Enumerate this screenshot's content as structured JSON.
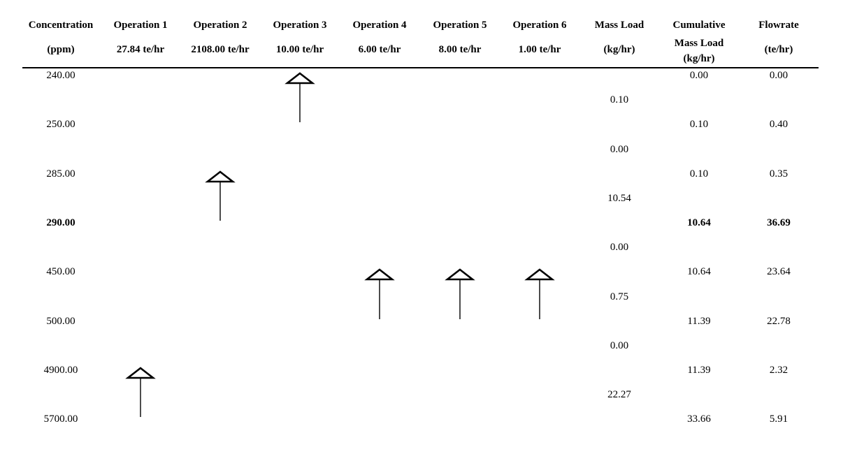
{
  "diagram": {
    "kind": "concentration-interval-diagram",
    "colors": {
      "text": "#000000",
      "background": "#ffffff",
      "line": "#000000"
    }
  },
  "columns": [
    {
      "id": "concentration",
      "title": "Concentration",
      "subtitle": "(ppm)"
    },
    {
      "id": "operation-1",
      "title": "Operation 1",
      "subtitle": "27.84 te/hr"
    },
    {
      "id": "operation-2",
      "title": "Operation 2",
      "subtitle": "2108.00 te/hr"
    },
    {
      "id": "operation-3",
      "title": "Operation 3",
      "subtitle": "10.00 te/hr"
    },
    {
      "id": "operation-4",
      "title": "Operation 4",
      "subtitle": "6.00 te/hr"
    },
    {
      "id": "operation-5",
      "title": "Operation 5",
      "subtitle": "8.00 te/hr"
    },
    {
      "id": "operation-6",
      "title": "Operation 6",
      "subtitle": "1.00 te/hr"
    },
    {
      "id": "mass-load",
      "title": "Mass Load",
      "subtitle": "(kg/hr)"
    },
    {
      "id": "cumulative-mass-load",
      "title": "Cumulative",
      "subtitle": "Mass Load\n(kg/hr)",
      "multiline": true
    },
    {
      "id": "flowrate",
      "title": "Flowrate",
      "subtitle": "(te/hr)"
    }
  ],
  "rows": [
    {
      "concentration": "240.00",
      "cumulative_mass_load": "0.00",
      "flowrate": "0.00",
      "bold": false
    },
    {
      "concentration": "250.00",
      "cumulative_mass_load": "0.10",
      "flowrate": "0.40",
      "bold": false
    },
    {
      "concentration": "285.00",
      "cumulative_mass_load": "0.10",
      "flowrate": "0.35",
      "bold": false
    },
    {
      "concentration": "290.00",
      "cumulative_mass_load": "10.64",
      "flowrate": "36.69",
      "bold": true
    },
    {
      "concentration": "450.00",
      "cumulative_mass_load": "10.64",
      "flowrate": "23.64",
      "bold": false
    },
    {
      "concentration": "500.00",
      "cumulative_mass_load": "11.39",
      "flowrate": "22.78",
      "bold": false
    },
    {
      "concentration": "4900.00",
      "cumulative_mass_load": "11.39",
      "flowrate": "2.32",
      "bold": false
    },
    {
      "concentration": "5700.00",
      "cumulative_mass_load": "33.66",
      "flowrate": "5.91",
      "bold": false
    }
  ],
  "interval_mass_loads": [
    {
      "between": [
        "240.00",
        "250.00"
      ],
      "mass_load": "0.10"
    },
    {
      "between": [
        "250.00",
        "285.00"
      ],
      "mass_load": "0.00"
    },
    {
      "between": [
        "285.00",
        "290.00"
      ],
      "mass_load": "10.54"
    },
    {
      "between": [
        "290.00",
        "450.00"
      ],
      "mass_load": "0.00"
    },
    {
      "between": [
        "450.00",
        "500.00"
      ],
      "mass_load": "0.75"
    },
    {
      "between": [
        "500.00",
        "4900.00"
      ],
      "mass_load": "0.00"
    },
    {
      "between": [
        "4900.00",
        "5700.00"
      ],
      "mass_load": "22.27"
    }
  ],
  "arrows": [
    {
      "operation": "Operation 1",
      "column": 1,
      "from_ppm": "5700.00",
      "to_ppm": "4900.00"
    },
    {
      "operation": "Operation 2",
      "column": 2,
      "from_ppm": "290.00",
      "to_ppm": "285.00"
    },
    {
      "operation": "Operation 3",
      "column": 3,
      "from_ppm": "250.00",
      "to_ppm": "240.00"
    },
    {
      "operation": "Operation 4",
      "column": 4,
      "from_ppm": "500.00",
      "to_ppm": "450.00"
    },
    {
      "operation": "Operation 5",
      "column": 5,
      "from_ppm": "500.00",
      "to_ppm": "450.00"
    },
    {
      "operation": "Operation 6",
      "column": 6,
      "from_ppm": "500.00",
      "to_ppm": "450.00"
    }
  ]
}
